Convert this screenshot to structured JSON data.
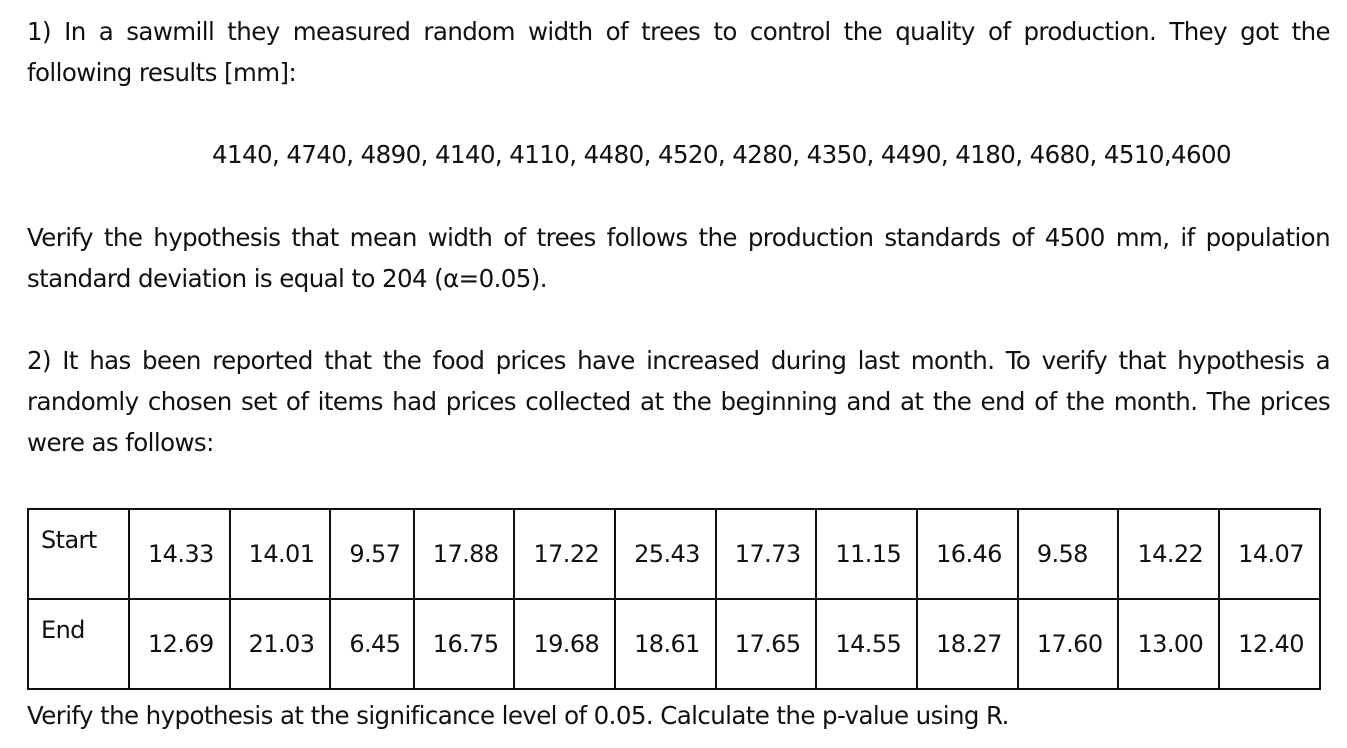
{
  "problem1": {
    "intro": "1) In a sawmill they measured random width of trees to control the quality of production. They got the following results [mm]:",
    "data": "4140, 4740, 4890, 4140, 4110, 4480, 4520, 4280, 4350, 4490, 4180, 4680, 4510,4600",
    "question": "Verify the hypothesis that mean width of trees follows the production standards of 4500 mm, if population standard deviation is equal to 204 (α=0.05)."
  },
  "problem2": {
    "intro": "2) It has been reported that the food prices have increased during last month. To verify that hypothesis a randomly chosen set of items had prices collected at the beginning and at the end of the month. The prices were as follows:",
    "table": {
      "start_label": "Start",
      "end_label": "End",
      "start": [
        "14.33",
        "14.01",
        "9.57",
        "17.88",
        "17.22",
        "25.43",
        "17.73",
        "11.15",
        "16.46",
        "9.58",
        "14.22",
        "14.07"
      ],
      "end": [
        "12.69",
        "21.03",
        "6.45",
        "16.75",
        "19.68",
        "18.61",
        "17.65",
        "14.55",
        "18.27",
        "17.60",
        "13.00",
        "12.40"
      ]
    },
    "question": "Verify the hypothesis at the significance level of 0.05. Calculate the p-value using R."
  }
}
